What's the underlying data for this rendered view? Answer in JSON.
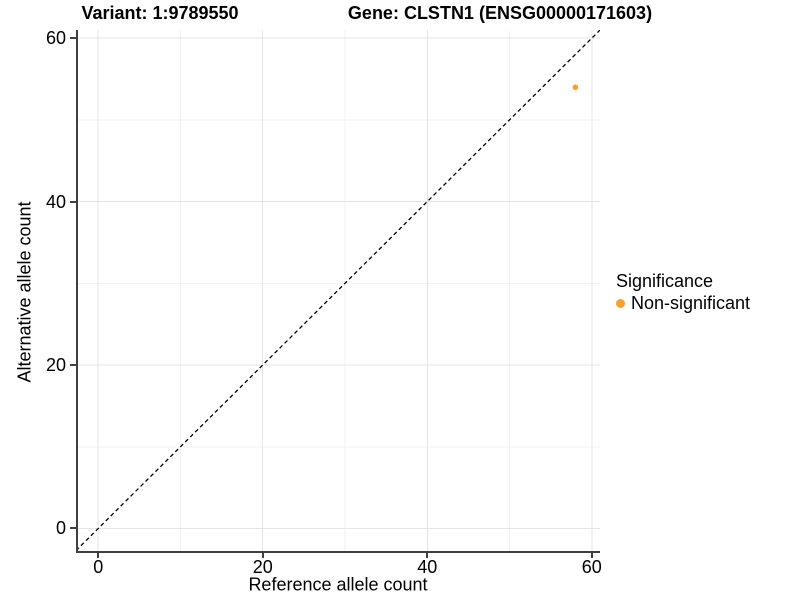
{
  "title": {
    "variant": "Variant: 1:9789550",
    "gene": "Gene: CLSTN1 (ENSG00000171603)"
  },
  "axes": {
    "x_label": "Reference allele count",
    "y_label": "Alternative allele count"
  },
  "legend": {
    "title": "Significance",
    "items": [
      {
        "label": "Non-significant",
        "color": "#F9A12B",
        "marker": "circle-icon"
      }
    ]
  },
  "colors": {
    "background": "#FFFFFF",
    "axis": "#3F3F3F",
    "grid_major": "#E5E5E5",
    "grid_minor": "#F2F2F2",
    "text": "#000000",
    "point": "#F9A12B"
  },
  "chart_data": {
    "type": "scatter",
    "title": "Variant: 1:9789550 / Gene: CLSTN1 (ENSG00000171603)",
    "xlabel": "Reference allele count",
    "ylabel": "Alternative allele count",
    "xlim": [
      -2.7,
      61
    ],
    "ylim": [
      -3,
      61
    ],
    "x_ticks": [
      0,
      20,
      40,
      60
    ],
    "y_ticks": [
      0,
      20,
      40,
      60
    ],
    "x_minor_ticks": [
      10,
      30,
      50
    ],
    "y_minor_ticks": [
      10,
      30,
      50
    ],
    "grid": "major+minor",
    "legend_position": "right",
    "series": [
      {
        "name": "Non-significant",
        "color": "#F9A12B",
        "points": [
          [
            58,
            54
          ]
        ]
      }
    ],
    "reference_line": {
      "style": "dashed",
      "slope": 1,
      "intercept": 0,
      "color": "#000000"
    }
  }
}
